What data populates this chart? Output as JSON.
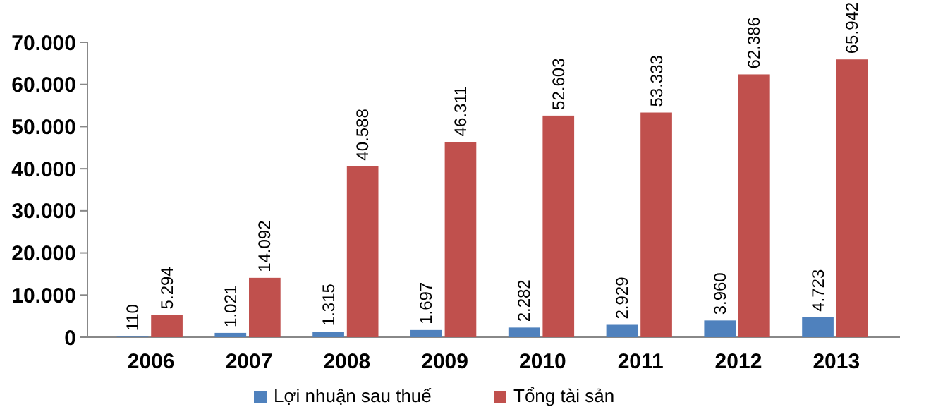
{
  "chart_data": {
    "type": "bar",
    "categories": [
      "2006",
      "2007",
      "2008",
      "2009",
      "2010",
      "2011",
      "2012",
      "2013"
    ],
    "series": [
      {
        "name": "Lợi nhuận sau thuế",
        "color": "#4f81bd",
        "values": [
          110,
          1021,
          1315,
          1697,
          2282,
          2929,
          3960,
          4723
        ],
        "value_labels": [
          "110",
          "1.021",
          "1.315",
          "1.697",
          "2.282",
          "2.929",
          "3.960",
          "4.723"
        ]
      },
      {
        "name": "Tổng tài sản",
        "color": "#c0504d",
        "values": [
          5294,
          14092,
          40588,
          46311,
          52603,
          53333,
          62386,
          65942
        ],
        "value_labels": [
          "5.294",
          "14.092",
          "40.588",
          "46.311",
          "52.603",
          "53.333",
          "62.386",
          "65.942"
        ]
      }
    ],
    "ylim": [
      0,
      70000
    ],
    "yticks": [
      {
        "value": 0,
        "label": "0"
      },
      {
        "value": 10000,
        "label": "10.000"
      },
      {
        "value": 20000,
        "label": "20.000"
      },
      {
        "value": 30000,
        "label": "30.000"
      },
      {
        "value": 40000,
        "label": "40.000"
      },
      {
        "value": 50000,
        "label": "50.000"
      },
      {
        "value": 60000,
        "label": "60.000"
      },
      {
        "value": 70000,
        "label": "70.000"
      }
    ],
    "grid": false,
    "legend": "bottom"
  }
}
